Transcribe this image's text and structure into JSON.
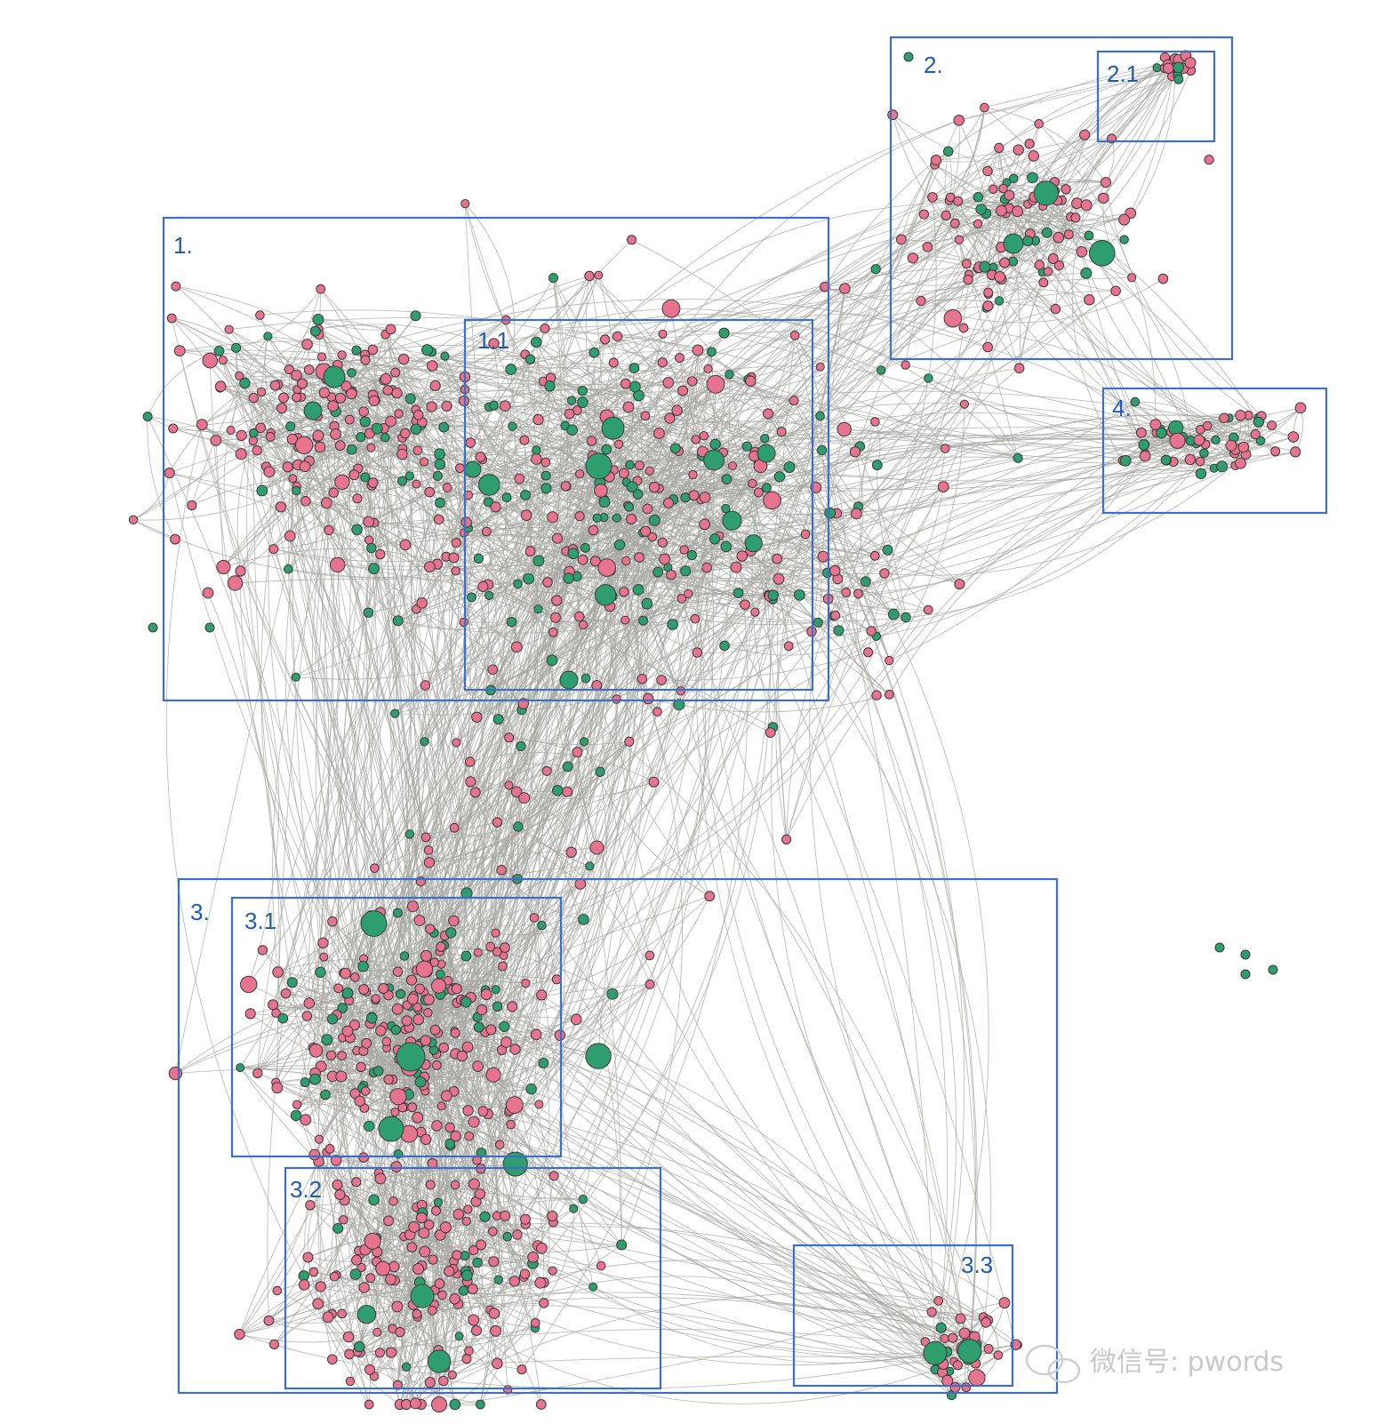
{
  "colors": {
    "pink_node": "#e8738e",
    "green_node": "#2f9e6e",
    "edge": "#a7a7a2",
    "box": "#3d6fc9",
    "label": "#1f5bb5"
  },
  "clusters": [
    {
      "id": "c1",
      "label": "1."
    },
    {
      "id": "c1_1",
      "label": "1.1"
    },
    {
      "id": "c2",
      "label": "2."
    },
    {
      "id": "c2_1",
      "label": "2.1"
    },
    {
      "id": "c3",
      "label": "3."
    },
    {
      "id": "c3_1",
      "label": "3.1"
    },
    {
      "id": "c3_2",
      "label": "3.2"
    },
    {
      "id": "c3_3",
      "label": "3.3"
    },
    {
      "id": "c4",
      "label": "4."
    }
  ],
  "watermark": {
    "text": "微信号: pwords",
    "icon": "wechat-icon"
  }
}
